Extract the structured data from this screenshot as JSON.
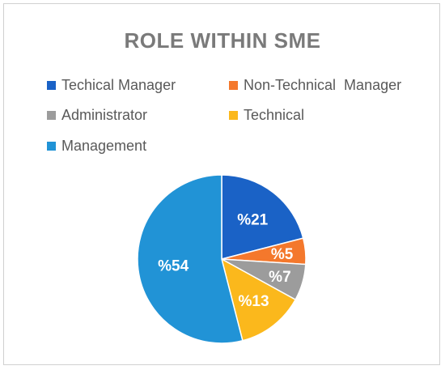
{
  "chart_data": {
    "type": "pie",
    "title": "ROLE WITHIN SME",
    "legend_placement": "top",
    "slices": [
      {
        "label": "Techical Manager",
        "value": 21,
        "display": "%21",
        "color": "#1a62c6"
      },
      {
        "label": "Non-Technical  Manager",
        "value": 5,
        "display": "%5",
        "color": "#f4782c"
      },
      {
        "label": "Administrator",
        "value": 7,
        "display": "%7",
        "color": "#9c9c9c"
      },
      {
        "label": "Technical",
        "value": 13,
        "display": "%13",
        "color": "#fbb81c"
      },
      {
        "label": "Management",
        "value": 54,
        "display": "%54",
        "color": "#2193d6"
      }
    ]
  }
}
